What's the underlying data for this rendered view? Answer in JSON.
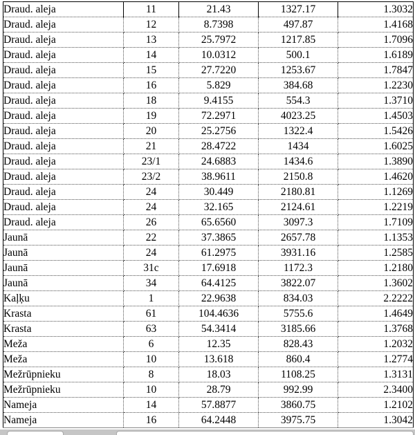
{
  "table": {
    "columns": [
      "street",
      "house_no",
      "value1",
      "value2",
      "value3"
    ],
    "rows": [
      {
        "street": "Draud. aleja",
        "house_no": "11",
        "value1": "21.43",
        "value2": "1327.17",
        "value3": "1.3032"
      },
      {
        "street": "Draud. aleja",
        "house_no": "12",
        "value1": "8.7398",
        "value2": "497.87",
        "value3": "1.4168"
      },
      {
        "street": "Draud. aleja",
        "house_no": "13",
        "value1": "25.7972",
        "value2": "1217.85",
        "value3": "1.7096"
      },
      {
        "street": "Draud. aleja",
        "house_no": "14",
        "value1": "10.0312",
        "value2": "500.1",
        "value3": "1.6189"
      },
      {
        "street": "Draud. aleja",
        "house_no": "15",
        "value1": "27.7220",
        "value2": "1253.67",
        "value3": "1.7847"
      },
      {
        "street": "Draud. aleja",
        "house_no": "16",
        "value1": "5.829",
        "value2": "384.68",
        "value3": "1.2230"
      },
      {
        "street": "Draud. aleja",
        "house_no": "18",
        "value1": "9.4155",
        "value2": "554.3",
        "value3": "1.3710"
      },
      {
        "street": "Draud. aleja",
        "house_no": "19",
        "value1": "72.2971",
        "value2": "4023.25",
        "value3": "1.4503"
      },
      {
        "street": "Draud. aleja",
        "house_no": "20",
        "value1": "25.2756",
        "value2": "1322.4",
        "value3": "1.5426"
      },
      {
        "street": "Draud. aleja",
        "house_no": "21",
        "value1": "28.4722",
        "value2": "1434",
        "value3": "1.6025"
      },
      {
        "street": "Draud. aleja",
        "house_no": "23/1",
        "value1": "24.6883",
        "value2": "1434.6",
        "value3": "1.3890"
      },
      {
        "street": "Draud. aleja",
        "house_no": "23/2",
        "value1": "38.9611",
        "value2": "2150.8",
        "value3": "1.4620"
      },
      {
        "street": "Draud. aleja",
        "house_no": "24",
        "value1": "30.449",
        "value2": "2180.81",
        "value3": "1.1269"
      },
      {
        "street": "Draud. aleja",
        "house_no": "24",
        "value1": "32.165",
        "value2": "2124.61",
        "value3": "1.2219"
      },
      {
        "street": "Draud. aleja",
        "house_no": "26",
        "value1": "65.6560",
        "value2": "3097.3",
        "value3": "1.7109"
      },
      {
        "street": "Jaunā",
        "house_no": "22",
        "value1": "37.3865",
        "value2": "2657.78",
        "value3": "1.1353"
      },
      {
        "street": "Jaunā",
        "house_no": "24",
        "value1": "61.2975",
        "value2": "3931.16",
        "value3": "1.2585"
      },
      {
        "street": "Jaunā",
        "house_no": "31c",
        "value1": "17.6918",
        "value2": "1172.3",
        "value3": "1.2180"
      },
      {
        "street": "Jaunā",
        "house_no": "34",
        "value1": "64.4125",
        "value2": "3822.07",
        "value3": "1.3602"
      },
      {
        "street": "Kaļķu",
        "house_no": "1",
        "value1": "22.9638",
        "value2": "834.03",
        "value3": "2.2222"
      },
      {
        "street": "Krasta",
        "house_no": "61",
        "value1": "104.4636",
        "value2": "5755.6",
        "value3": "1.4649"
      },
      {
        "street": "Krasta",
        "house_no": "63",
        "value1": "54.3414",
        "value2": "3185.66",
        "value3": "1.3768"
      },
      {
        "street": "Meža",
        "house_no": "6",
        "value1": "12.35",
        "value2": "828.43",
        "value3": "1.2032"
      },
      {
        "street": "Meža",
        "house_no": "10",
        "value1": "13.618",
        "value2": "860.4",
        "value3": "1.2774"
      },
      {
        "street": "Mežrūpnieku",
        "house_no": "8",
        "value1": "18.03",
        "value2": "1108.25",
        "value3": "1.3131"
      },
      {
        "street": "Mežrūpnieku",
        "house_no": "10",
        "value1": "28.79",
        "value2": "992.99",
        "value3": "2.3400"
      },
      {
        "street": "Nameja",
        "house_no": "14",
        "value1": "57.8877",
        "value2": "3860.75",
        "value3": "1.2102"
      },
      {
        "street": "Nameja",
        "house_no": "16",
        "value1": "64.2448",
        "value2": "3975.75",
        "value3": "1.3042"
      }
    ]
  }
}
